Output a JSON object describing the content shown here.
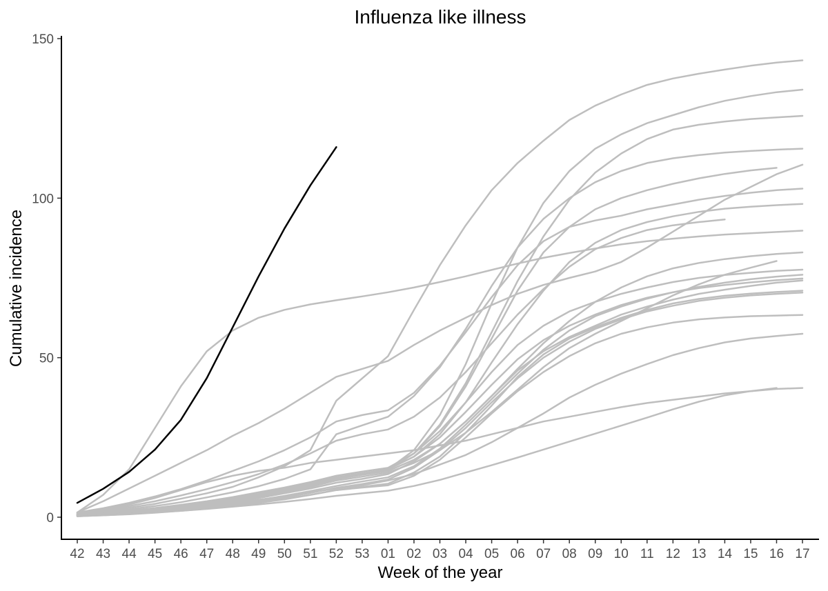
{
  "chart_data": {
    "type": "line",
    "title": "Influenza like illness",
    "xlabel": "Week of the year",
    "ylabel": "Cumulative incidence",
    "categories": [
      "42",
      "43",
      "44",
      "45",
      "46",
      "47",
      "48",
      "49",
      "50",
      "51",
      "52",
      "53",
      "01",
      "02",
      "03",
      "04",
      "05",
      "06",
      "07",
      "08",
      "09",
      "10",
      "11",
      "12",
      "13",
      "14",
      "15",
      "16",
      "17"
    ],
    "ylim": [
      -7,
      150
    ],
    "yticks": [
      0,
      50,
      100,
      150
    ],
    "grid": false,
    "legend": "none",
    "colors": {
      "highlight": "#000000",
      "background": "#bebebe"
    },
    "series": [
      {
        "highlight": true,
        "values": [
          4.5,
          8.9,
          14.2,
          21.2,
          30.5,
          43.6,
          59.5,
          75.5,
          90.5,
          104.0,
          116.0,
          null,
          null,
          null,
          null,
          null,
          null,
          null,
          null,
          null,
          null,
          null,
          null,
          null,
          null,
          null,
          null,
          null,
          null
        ]
      },
      {
        "values": [
          1.5,
          7.0,
          15.0,
          28.0,
          41.0,
          52.0,
          58.5,
          62.5,
          65.0,
          66.7,
          68.0,
          69.2,
          70.5,
          72.0,
          73.7,
          75.5,
          77.5,
          79.5,
          81.3,
          82.8,
          84.2,
          85.5,
          86.5,
          87.3,
          88.0,
          88.6,
          89.0,
          89.4,
          89.8
        ]
      },
      {
        "values": [
          1.5,
          5.0,
          9.0,
          13.0,
          17.0,
          21.0,
          25.5,
          29.5,
          34.0,
          39.0,
          44.0,
          46.5,
          49.0,
          54.0,
          58.5,
          62.5,
          66.5,
          70.0,
          72.8,
          75.0,
          77.0,
          80.0,
          84.5,
          89.5,
          94.5,
          99.5,
          103.5,
          107.5,
          110.5
        ]
      },
      {
        "values": [
          1.0,
          2.0,
          3.0,
          4.2,
          5.8,
          7.5,
          9.5,
          12.5,
          16.0,
          21.0,
          36.5,
          43.5,
          50.5,
          65.0,
          79.0,
          91.5,
          102.5,
          111.0,
          118.0,
          124.5,
          129.0,
          132.5,
          135.5,
          137.5,
          139.0,
          140.3,
          141.5,
          142.5,
          143.2
        ]
      },
      {
        "values": [
          1.2,
          2.5,
          4.0,
          6.0,
          8.5,
          11.0,
          13.0,
          14.5,
          15.5,
          17.0,
          18.0,
          19.0,
          20.0,
          21.0,
          22.5,
          24.0,
          26.0,
          28.0,
          30.0,
          31.5,
          33.0,
          34.5,
          35.8,
          36.8,
          37.8,
          38.8,
          39.5,
          40.2,
          40.5
        ]
      },
      {
        "values": [
          0.5,
          0.8,
          1.1,
          1.5,
          2.0,
          2.6,
          3.3,
          4.0,
          4.8,
          5.7,
          6.7,
          7.5,
          8.3,
          9.8,
          11.7,
          14.0,
          16.3,
          18.7,
          21.2,
          23.7,
          26.2,
          28.7,
          31.2,
          33.8,
          36.2,
          38.2,
          39.5,
          40.5,
          null
        ]
      },
      {
        "values": [
          0.6,
          1.0,
          1.5,
          2.0,
          2.7,
          3.5,
          4.5,
          5.5,
          6.5,
          7.8,
          9.0,
          10.0,
          11.5,
          13.5,
          16.5,
          19.5,
          23.5,
          28.0,
          32.5,
          37.5,
          41.5,
          45.0,
          48.0,
          50.8,
          53.0,
          54.8,
          56.0,
          56.8,
          57.5
        ]
      },
      {
        "values": [
          0.7,
          1.1,
          1.6,
          2.2,
          3.0,
          4.0,
          5.1,
          6.3,
          7.8,
          9.5,
          11.5,
          12.7,
          14.0,
          17.0,
          21.0,
          26.5,
          33.0,
          40.0,
          47.0,
          53.0,
          57.5,
          61.5,
          65.5,
          69.5,
          73.0,
          76.0,
          78.2,
          80.3,
          null
        ]
      },
      {
        "values": [
          0.8,
          1.2,
          1.8,
          2.5,
          3.3,
          4.3,
          5.5,
          6.8,
          8.3,
          10.0,
          12.0,
          13.3,
          14.5,
          18.0,
          23.0,
          30.0,
          38.0,
          46.0,
          52.0,
          56.5,
          60.0,
          63.5,
          66.0,
          68.2,
          70.0,
          71.3,
          72.5,
          73.5,
          74.2
        ]
      },
      {
        "values": [
          0.9,
          1.3,
          1.9,
          2.7,
          3.6,
          4.7,
          6.0,
          7.3,
          8.9,
          10.5,
          12.5,
          13.8,
          15.0,
          19.0,
          25.0,
          33.0,
          41.5,
          49.5,
          55.5,
          60.0,
          63.5,
          66.5,
          68.8,
          70.5,
          71.8,
          72.8,
          73.6,
          74.3,
          74.8
        ]
      },
      {
        "values": [
          1.0,
          1.5,
          2.1,
          2.9,
          3.9,
          5.0,
          6.3,
          7.8,
          9.3,
          11.0,
          13.0,
          14.3,
          15.5,
          20.0,
          27.0,
          36.0,
          45.5,
          54.0,
          60.0,
          64.5,
          67.5,
          70.0,
          72.0,
          73.7,
          75.0,
          75.9,
          76.6,
          77.2,
          77.6
        ]
      },
      {
        "values": [
          0.8,
          1.3,
          1.9,
          2.7,
          3.6,
          4.6,
          5.8,
          7.0,
          8.5,
          10.3,
          12.3,
          13.7,
          15.0,
          19.0,
          26.0,
          36.0,
          48.5,
          60.5,
          71.0,
          80.0,
          86.0,
          90.0,
          92.5,
          94.3,
          95.7,
          96.7,
          97.3,
          97.8,
          98.2
        ]
      },
      {
        "values": [
          0.7,
          1.2,
          1.8,
          2.5,
          3.3,
          4.3,
          5.5,
          6.7,
          8.2,
          10.0,
          12.0,
          13.4,
          15.0,
          20.0,
          28.5,
          41.0,
          56.0,
          71.0,
          83.0,
          91.0,
          96.5,
          100.0,
          102.5,
          104.5,
          106.2,
          107.6,
          108.7,
          109.5,
          null
        ]
      },
      {
        "values": [
          1.0,
          1.7,
          2.5,
          3.5,
          4.7,
          6.2,
          7.8,
          9.7,
          12.0,
          15.0,
          26.0,
          28.8,
          31.5,
          38.0,
          47.0,
          59.0,
          72.5,
          84.5,
          93.5,
          100.0,
          105.0,
          108.5,
          111.0,
          112.5,
          113.5,
          114.3,
          114.8,
          115.2,
          115.5
        ]
      },
      {
        "values": [
          0.6,
          1.0,
          1.6,
          2.3,
          3.2,
          4.2,
          5.4,
          6.7,
          8.2,
          10.0,
          12.0,
          13.4,
          14.8,
          20.0,
          29.0,
          42.0,
          58.0,
          74.0,
          88.0,
          99.5,
          108.0,
          114.0,
          118.5,
          121.5,
          123.0,
          124.0,
          124.8,
          125.3,
          125.8
        ]
      },
      {
        "values": [
          0.7,
          1.1,
          1.7,
          2.4,
          3.3,
          4.4,
          5.6,
          6.9,
          8.5,
          10.2,
          12.2,
          13.6,
          15.0,
          21.0,
          32.0,
          48.0,
          67.0,
          84.5,
          98.5,
          108.5,
          115.5,
          120.0,
          123.5,
          126.0,
          128.5,
          130.5,
          132.0,
          133.2,
          134.0
        ]
      },
      {
        "values": [
          0.5,
          0.9,
          1.4,
          2.0,
          2.8,
          3.7,
          4.8,
          6.0,
          7.5,
          9.0,
          10.8,
          12.0,
          13.5,
          17.5,
          23.0,
          30.0,
          38.0,
          46.5,
          54.5,
          61.5,
          67.5,
          72.0,
          75.5,
          78.0,
          79.7,
          80.9,
          81.8,
          82.5,
          83.0
        ]
      },
      {
        "values": [
          0.4,
          0.8,
          1.2,
          1.8,
          2.5,
          3.3,
          4.3,
          5.4,
          6.7,
          8.2,
          9.8,
          11.2,
          12.5,
          16.0,
          21.5,
          29.0,
          37.0,
          45.0,
          52.5,
          58.5,
          63.0,
          66.0,
          68.5,
          70.5,
          72.2,
          73.5,
          74.6,
          75.4,
          76.0
        ]
      },
      {
        "values": [
          0.3,
          0.6,
          0.9,
          1.4,
          2.0,
          2.7,
          3.5,
          4.5,
          5.6,
          7.0,
          8.5,
          9.5,
          10.5,
          14.0,
          19.0,
          26.5,
          35.0,
          44.0,
          51.0,
          56.0,
          59.5,
          62.5,
          65.0,
          67.0,
          68.4,
          69.4,
          70.1,
          70.6,
          71.0
        ]
      },
      {
        "values": [
          0.4,
          0.7,
          1.1,
          1.6,
          2.2,
          3.0,
          4.0,
          5.0,
          6.2,
          7.6,
          9.2,
          10.4,
          11.8,
          15.5,
          21.0,
          28.0,
          36.0,
          43.5,
          50.0,
          55.0,
          59.0,
          62.0,
          64.5,
          66.3,
          67.8,
          68.8,
          69.5,
          70.0,
          70.4
        ]
      },
      {
        "values": [
          0.3,
          0.6,
          1.0,
          1.5,
          2.1,
          2.8,
          3.7,
          4.6,
          5.8,
          7.0,
          8.5,
          9.3,
          10.0,
          13.0,
          18.0,
          25.0,
          32.5,
          39.5,
          45.5,
          50.5,
          54.5,
          57.5,
          59.5,
          61.0,
          62.0,
          62.6,
          63.0,
          63.2,
          63.4
        ]
      },
      {
        "values": [
          1.5,
          2.8,
          4.5,
          6.5,
          8.8,
          11.5,
          14.5,
          17.5,
          21.0,
          25.0,
          30.0,
          32.0,
          33.5,
          39.0,
          47.5,
          58.0,
          69.0,
          79.0,
          86.5,
          91.0,
          93.0,
          94.5,
          96.5,
          98.0,
          99.5,
          100.7,
          101.7,
          102.5,
          103.0
        ]
      },
      {
        "values": [
          1.2,
          2.2,
          3.5,
          5.0,
          6.8,
          8.8,
          11.0,
          13.5,
          16.5,
          20.0,
          24.0,
          26.0,
          27.5,
          31.5,
          37.5,
          45.5,
          54.5,
          63.5,
          71.5,
          78.5,
          84.0,
          87.5,
          90.0,
          91.5,
          92.5,
          93.3,
          null,
          null,
          null
        ]
      }
    ]
  }
}
